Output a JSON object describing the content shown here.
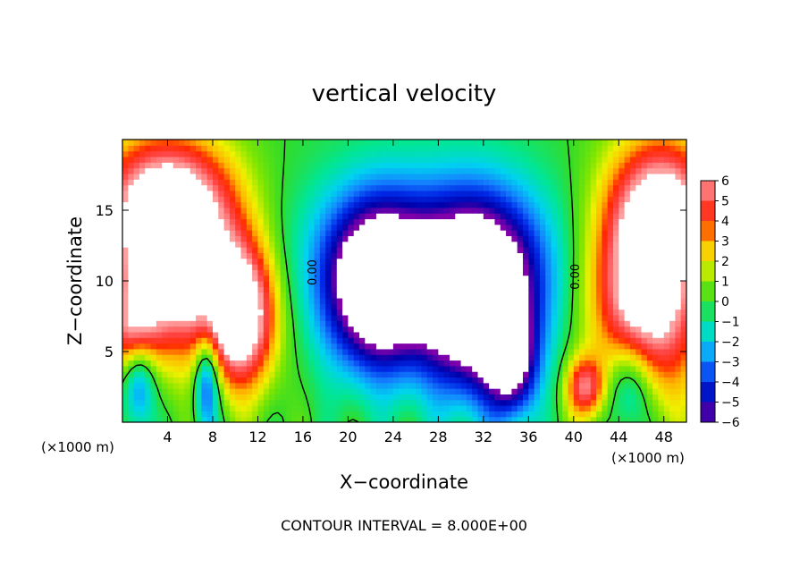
{
  "chart_data": {
    "type": "heatmap",
    "title": "vertical velocity",
    "xlabel": "X−coordinate",
    "ylabel": "Z−coordinate",
    "x_unit_left": "(×1000 m)",
    "x_unit_right": "(×1000 m)",
    "xlim": [
      0,
      50
    ],
    "ylim": [
      0,
      20
    ],
    "xticks": [
      4,
      8,
      12,
      16,
      20,
      24,
      28,
      32,
      36,
      40,
      44,
      48
    ],
    "yticks": [
      5,
      10,
      15
    ],
    "colorbar": {
      "range": [
        -6,
        6
      ],
      "ticks": [
        6,
        5,
        4,
        3,
        2,
        1,
        0,
        -1,
        -2,
        -3,
        -4,
        -5,
        -6
      ],
      "tick_labels": [
        "6",
        "5",
        "4",
        "3",
        "2",
        "1",
        "0",
        "−1",
        "−2",
        "−3",
        "−4",
        "−5",
        "−6"
      ]
    },
    "contour_labels": [
      {
        "text": "0.00",
        "x": 17.2,
        "y": 10.6
      },
      {
        "text": "0.00",
        "x": 40.5,
        "y": 10.3
      }
    ],
    "footer": "CONTOUR INTERVAL = 8.000E+00",
    "features": [
      {
        "kind": "updraft",
        "x": 4.5,
        "z": 11.5,
        "sx": 4.0,
        "sz": 4.5,
        "w": 9
      },
      {
        "kind": "updraft",
        "x": 10.5,
        "z": 7.5,
        "sx": 2.2,
        "sz": 3.5,
        "w": 8
      },
      {
        "kind": "updraft",
        "x": 3.5,
        "z": 16.5,
        "sx": 4.5,
        "sz": 3.0,
        "w": 4
      },
      {
        "kind": "updraft",
        "x": 46.5,
        "z": 10,
        "sx": 3.5,
        "sz": 5.5,
        "w": 9
      },
      {
        "kind": "updraft",
        "x": 48.5,
        "z": 16,
        "sx": 3.0,
        "sz": 3.0,
        "w": 4
      },
      {
        "kind": "updraft",
        "x": 1.0,
        "z": 6.5,
        "sx": 1.5,
        "sz": 2.0,
        "w": 4
      },
      {
        "kind": "updraft",
        "x": 41.0,
        "z": 2.5,
        "sx": 1.2,
        "sz": 1.5,
        "w": 5
      },
      {
        "kind": "downdraft",
        "x": 22.5,
        "z": 9.5,
        "sx": 3.0,
        "sz": 4.0,
        "w": -8
      },
      {
        "kind": "downdraft",
        "x": 31.5,
        "z": 8.5,
        "sx": 3.5,
        "sz": 4.5,
        "w": -9
      },
      {
        "kind": "downdraft",
        "x": 27.5,
        "z": 11.5,
        "sx": 8.0,
        "sz": 4.5,
        "w": -4
      },
      {
        "kind": "downdraft",
        "x": 34.5,
        "z": 4.0,
        "sx": 1.5,
        "sz": 2.5,
        "w": -5
      },
      {
        "kind": "downdraft",
        "x": 1.5,
        "z": 3.0,
        "sx": 1.0,
        "sz": 2.5,
        "w": -4
      },
      {
        "kind": "downdraft",
        "x": 7.5,
        "z": 3.0,
        "sx": 0.8,
        "sz": 2.5,
        "w": -5
      },
      {
        "kind": "downdraft",
        "x": 45.0,
        "z": 2.5,
        "sx": 1.5,
        "sz": 2.5,
        "w": -4
      }
    ]
  }
}
